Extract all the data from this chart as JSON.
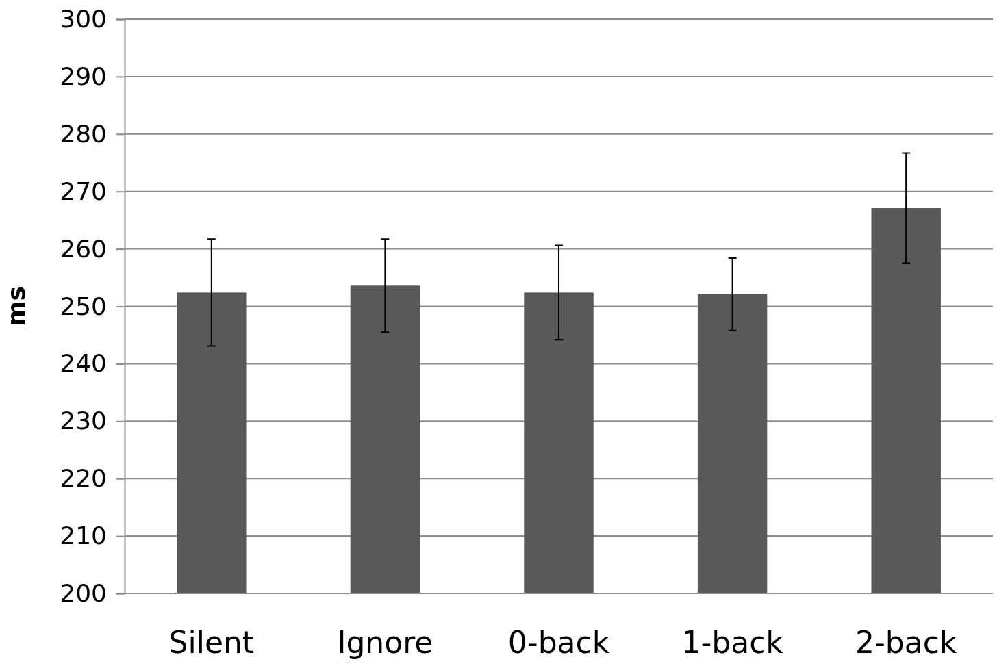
{
  "chart_data": {
    "type": "bar",
    "ylabel": "ms",
    "categories": [
      "Silent",
      "Ignore",
      "0-back",
      "1-back",
      "2-back"
    ],
    "values": [
      252.4,
      253.6,
      252.4,
      252.1,
      267.1
    ],
    "errors": [
      9.3,
      8.1,
      8.2,
      6.3,
      9.6
    ],
    "color": "#595959",
    "ylim": [
      200,
      300
    ],
    "yticks": [
      200,
      210,
      220,
      230,
      240,
      250,
      260,
      270,
      280,
      290,
      300
    ],
    "grid": "y"
  }
}
